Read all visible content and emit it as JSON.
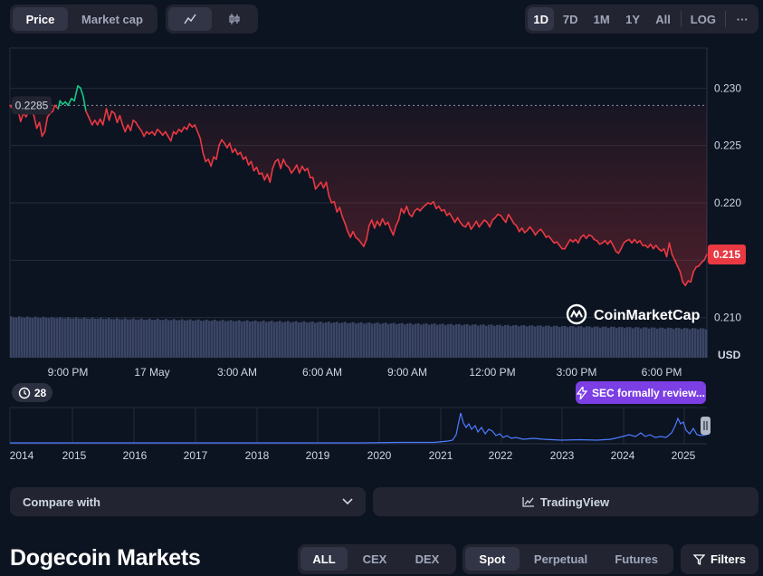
{
  "toggle_metric": {
    "options": [
      "Price",
      "Market cap"
    ],
    "active": 0
  },
  "toggle_chart_kind": {
    "line_icon": "line-chart-icon",
    "candle_icon": "candlestick-icon",
    "active": "line"
  },
  "range_buttons": {
    "options": [
      "1D",
      "7D",
      "1M",
      "1Y",
      "All",
      "LOG"
    ],
    "active": "1D",
    "more_label": "···"
  },
  "chart_data": {
    "type": "line",
    "currency_label": "USD",
    "y_ticks": [
      0.23,
      0.225,
      0.22,
      0.215,
      0.21
    ],
    "y_tick_labels": [
      "0.230",
      "0.225",
      "0.220",
      "0.215",
      "0.210"
    ],
    "ylim": [
      0.2065,
      0.2335
    ],
    "x_tick_labels": [
      "9:00 PM",
      "17 May",
      "3:00 AM",
      "6:00 AM",
      "9:00 AM",
      "12:00 PM",
      "3:00 PM",
      "6:00 PM"
    ],
    "open_price": 0.2285,
    "open_price_label": "0.2285",
    "current_price_label": "0.215",
    "colors": {
      "up": "#16c784",
      "down": "#ea3943",
      "grid": "#222b3a",
      "volume": "#3a4566"
    },
    "series": [
      {
        "points": [
          [
            0,
            0.2285
          ],
          [
            5,
            0.228
          ],
          [
            9,
            0.2281
          ],
          [
            12,
            0.2271
          ],
          [
            15,
            0.2278
          ],
          [
            18,
            0.2275
          ],
          [
            21,
            0.228
          ],
          [
            24,
            0.2285
          ],
          [
            27,
            0.2275
          ],
          [
            30,
            0.2265
          ],
          [
            33,
            0.227
          ],
          [
            36,
            0.2258
          ],
          [
            39,
            0.2262
          ],
          [
            42,
            0.2275
          ],
          [
            45,
            0.2278
          ],
          [
            48,
            0.228
          ],
          [
            50,
            0.2285
          ],
          [
            54,
            0.2282
          ],
          [
            56,
            0.2289
          ],
          [
            59,
            0.2286
          ],
          [
            62,
            0.2288
          ],
          [
            65,
            0.2285
          ],
          [
            69,
            0.2291
          ],
          [
            72,
            0.2289
          ],
          [
            76,
            0.2302
          ],
          [
            79,
            0.23
          ],
          [
            82,
            0.2293
          ],
          [
            85,
            0.228
          ],
          [
            88,
            0.2275
          ],
          [
            92,
            0.2268
          ],
          [
            95,
            0.2272
          ],
          [
            98,
            0.2268
          ],
          [
            101,
            0.2273
          ],
          [
            104,
            0.2268
          ],
          [
            108,
            0.2282
          ],
          [
            111,
            0.2272
          ],
          [
            114,
            0.228
          ],
          [
            117,
            0.2278
          ],
          [
            120,
            0.227
          ],
          [
            123,
            0.2276
          ],
          [
            126,
            0.2268
          ],
          [
            129,
            0.2262
          ],
          [
            132,
            0.2268
          ],
          [
            135,
            0.2263
          ],
          [
            138,
            0.2272
          ],
          [
            141,
            0.227
          ],
          [
            144,
            0.2266
          ],
          [
            147,
            0.2263
          ],
          [
            150,
            0.2258
          ],
          [
            153,
            0.2262
          ],
          [
            156,
            0.226
          ],
          [
            159,
            0.2262
          ],
          [
            162,
            0.2259
          ],
          [
            165,
            0.2264
          ],
          [
            168,
            0.2262
          ],
          [
            171,
            0.2259
          ],
          [
            174,
            0.2262
          ],
          [
            177,
            0.2258
          ],
          [
            180,
            0.2254
          ],
          [
            183,
            0.2262
          ],
          [
            186,
            0.226
          ],
          [
            189,
            0.2264
          ],
          [
            192,
            0.2262
          ],
          [
            195,
            0.2266
          ],
          [
            198,
            0.2264
          ],
          [
            201,
            0.2269
          ],
          [
            204,
            0.2266
          ],
          [
            207,
            0.2268
          ],
          [
            210,
            0.2262
          ],
          [
            213,
            0.2256
          ],
          [
            216,
            0.2244
          ],
          [
            219,
            0.2236
          ],
          [
            222,
            0.2238
          ],
          [
            225,
            0.2232
          ],
          [
            228,
            0.224
          ],
          [
            231,
            0.2238
          ],
          [
            234,
            0.225
          ],
          [
            237,
            0.2255
          ],
          [
            240,
            0.2252
          ],
          [
            243,
            0.2248
          ],
          [
            246,
            0.2252
          ],
          [
            249,
            0.2244
          ],
          [
            252,
            0.2247
          ],
          [
            255,
            0.2242
          ],
          [
            258,
            0.2244
          ],
          [
            261,
            0.2238
          ],
          [
            264,
            0.224
          ],
          [
            267,
            0.2233
          ],
          [
            270,
            0.2236
          ],
          [
            273,
            0.2228
          ],
          [
            276,
            0.2231
          ],
          [
            279,
            0.2225
          ],
          [
            282,
            0.2226
          ],
          [
            285,
            0.222
          ],
          [
            288,
            0.2225
          ],
          [
            291,
            0.2218
          ],
          [
            294,
            0.223
          ],
          [
            297,
            0.2236
          ],
          [
            300,
            0.2238
          ],
          [
            303,
            0.223
          ],
          [
            306,
            0.2238
          ],
          [
            309,
            0.2233
          ],
          [
            312,
            0.2231
          ],
          [
            315,
            0.2226
          ],
          [
            318,
            0.2229
          ],
          [
            321,
            0.2233
          ],
          [
            324,
            0.2226
          ],
          [
            327,
            0.2232
          ],
          [
            330,
            0.2228
          ],
          [
            333,
            0.223
          ],
          [
            336,
            0.2222
          ],
          [
            339,
            0.2222
          ],
          [
            342,
            0.2212
          ],
          [
            345,
            0.2215
          ],
          [
            348,
            0.2218
          ],
          [
            351,
            0.2213
          ],
          [
            354,
            0.2218
          ],
          [
            357,
            0.2206
          ],
          [
            360,
            0.22
          ],
          [
            363,
            0.2201
          ],
          [
            366,
            0.2192
          ],
          [
            369,
            0.2196
          ],
          [
            372,
            0.2188
          ],
          [
            375,
            0.2182
          ],
          [
            378,
            0.2175
          ],
          [
            381,
            0.217
          ],
          [
            384,
            0.2175
          ],
          [
            387,
            0.217
          ],
          [
            390,
            0.2168
          ],
          [
            393,
            0.2165
          ],
          [
            396,
            0.2162
          ],
          [
            399,
            0.2168
          ],
          [
            402,
            0.218
          ],
          [
            405,
            0.2185
          ],
          [
            408,
            0.2178
          ],
          [
            411,
            0.2184
          ],
          [
            414,
            0.218
          ],
          [
            417,
            0.2186
          ],
          [
            420,
            0.2181
          ],
          [
            423,
            0.2183
          ],
          [
            426,
            0.2177
          ],
          [
            429,
            0.2172
          ],
          [
            432,
            0.218
          ],
          [
            435,
            0.2185
          ],
          [
            438,
            0.2195
          ],
          [
            441,
            0.2191
          ],
          [
            444,
            0.2197
          ],
          [
            447,
            0.219
          ],
          [
            450,
            0.2188
          ],
          [
            453,
            0.2193
          ],
          [
            456,
            0.2195
          ],
          [
            459,
            0.2193
          ],
          [
            462,
            0.2196
          ],
          [
            465,
            0.2198
          ],
          [
            468,
            0.22
          ],
          [
            471,
            0.2199
          ],
          [
            474,
            0.2201
          ],
          [
            477,
            0.2195
          ],
          [
            480,
            0.2197
          ],
          [
            483,
            0.2193
          ],
          [
            486,
            0.2194
          ],
          [
            489,
            0.2189
          ],
          [
            492,
            0.2191
          ],
          [
            495,
            0.2187
          ],
          [
            498,
            0.2183
          ],
          [
            501,
            0.2187
          ],
          [
            504,
            0.2183
          ],
          [
            507,
            0.218
          ],
          [
            510,
            0.2179
          ],
          [
            513,
            0.2183
          ],
          [
            516,
            0.2177
          ],
          [
            519,
            0.218
          ],
          [
            522,
            0.2184
          ],
          [
            525,
            0.2179
          ],
          [
            528,
            0.2182
          ],
          [
            531,
            0.2185
          ],
          [
            534,
            0.2183
          ],
          [
            537,
            0.2179
          ],
          [
            540,
            0.2185
          ],
          [
            543,
            0.2187
          ],
          [
            546,
            0.219
          ],
          [
            549,
            0.2189
          ],
          [
            552,
            0.2186
          ],
          [
            555,
            0.2183
          ],
          [
            558,
            0.219
          ],
          [
            561,
            0.2186
          ],
          [
            564,
            0.2182
          ],
          [
            567,
            0.218
          ],
          [
            570,
            0.2175
          ],
          [
            573,
            0.2178
          ],
          [
            576,
            0.2174
          ],
          [
            579,
            0.2176
          ],
          [
            582,
            0.2179
          ],
          [
            585,
            0.2176
          ],
          [
            588,
            0.2172
          ],
          [
            591,
            0.2175
          ],
          [
            594,
            0.2177
          ],
          [
            597,
            0.2174
          ],
          [
            600,
            0.217
          ],
          [
            603,
            0.2171
          ],
          [
            606,
            0.2168
          ],
          [
            609,
            0.2165
          ],
          [
            612,
            0.2166
          ],
          [
            615,
            0.2163
          ],
          [
            618,
            0.216
          ],
          [
            621,
            0.216
          ],
          [
            624,
            0.2164
          ],
          [
            627,
            0.2168
          ],
          [
            630,
            0.2166
          ],
          [
            633,
            0.2168
          ],
          [
            636,
            0.2165
          ],
          [
            639,
            0.217
          ],
          [
            642,
            0.2172
          ],
          [
            645,
            0.2169
          ],
          [
            648,
            0.2172
          ],
          [
            651,
            0.2171
          ],
          [
            654,
            0.2168
          ],
          [
            657,
            0.2167
          ],
          [
            660,
            0.2164
          ],
          [
            663,
            0.2165
          ],
          [
            666,
            0.2167
          ],
          [
            669,
            0.2164
          ],
          [
            672,
            0.2167
          ],
          [
            675,
            0.2163
          ],
          [
            678,
            0.2158
          ],
          [
            681,
            0.2156
          ],
          [
            684,
            0.216
          ],
          [
            687,
            0.2165
          ],
          [
            690,
            0.2167
          ],
          [
            693,
            0.2168
          ],
          [
            696,
            0.2165
          ],
          [
            699,
            0.2168
          ],
          [
            702,
            0.2165
          ],
          [
            705,
            0.2167
          ],
          [
            708,
            0.2163
          ],
          [
            711,
            0.2163
          ],
          [
            714,
            0.2161
          ],
          [
            717,
            0.2164
          ],
          [
            720,
            0.216
          ],
          [
            723,
            0.2163
          ],
          [
            726,
            0.216
          ],
          [
            729,
            0.2158
          ],
          [
            732,
            0.216
          ],
          [
            735,
            0.2153
          ],
          [
            738,
            0.2165
          ],
          [
            741,
            0.2155
          ],
          [
            744,
            0.215
          ],
          [
            747,
            0.2145
          ],
          [
            750,
            0.214
          ],
          [
            753,
            0.2131
          ],
          [
            756,
            0.2128
          ],
          [
            759,
            0.2132
          ],
          [
            762,
            0.2131
          ],
          [
            765,
            0.214
          ],
          [
            768,
            0.2144
          ],
          [
            771,
            0.2145
          ],
          [
            774,
            0.2148
          ],
          [
            777,
            0.215
          ],
          [
            780,
            0.2155
          ]
        ]
      }
    ]
  },
  "events_badge": {
    "count": "28",
    "icon": "history-icon"
  },
  "news_badge": {
    "label": "SEC formally review...",
    "icon": "lightning-icon"
  },
  "overview": {
    "year_labels": [
      "2014",
      "2015",
      "2016",
      "2017",
      "2018",
      "2019",
      "2020",
      "2021",
      "2022",
      "2023",
      "2024",
      "2025"
    ],
    "line_color": "#4a7cff"
  },
  "controls": {
    "compare_label": "Compare with",
    "tradingview_label": "TradingView"
  },
  "markets": {
    "title": "Dogecoin Markets",
    "source_filters": [
      "ALL",
      "CEX",
      "DEX"
    ],
    "source_active": 0,
    "type_filters": [
      "Spot",
      "Perpetual",
      "Futures"
    ],
    "type_active": 0,
    "filters_label": "Filters"
  },
  "watermark": "CoinMarketCap"
}
